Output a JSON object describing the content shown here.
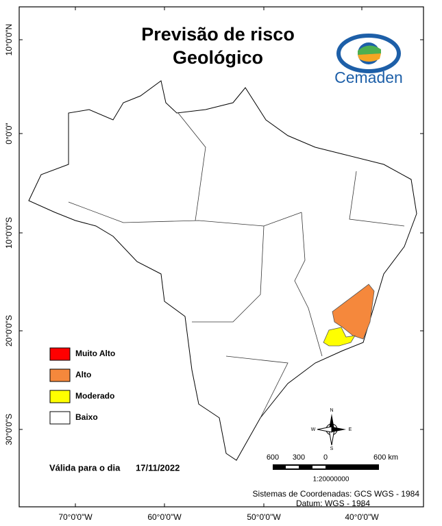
{
  "title": [
    "Previsão de risco",
    "Geológico"
  ],
  "logo": "Cemaden",
  "legend": [
    {
      "label": "Muito Alto",
      "color": "#ff0000"
    },
    {
      "label": "Alto",
      "color": "#f5883c"
    },
    {
      "label": "Moderado",
      "color": "#ffff00"
    },
    {
      "label": "Baixo",
      "color": "#ffffff"
    }
  ],
  "validity": {
    "label": "Válida para o dia",
    "date": "17/11/2022"
  },
  "scale": {
    "ticks": [
      "600",
      "300",
      "0",
      "600 km"
    ],
    "ratio": "1:20000000"
  },
  "compass": [
    "N",
    "E",
    "S",
    "W"
  ],
  "coordinate_system": [
    "Sistemas de Coordenadas: GCS WGS - 1984",
    "Datum: WGS - 1984"
  ],
  "lat_labels": [
    "10°0'0\"N",
    "0°0'0\"",
    "10°0'0\"S",
    "20°0'0\"S",
    "30°0'0\"S"
  ],
  "lon_labels": [
    "70°0'0\"W",
    "60°0'0\"W",
    "50°0'0\"W",
    "40°0'0\"W"
  ]
}
